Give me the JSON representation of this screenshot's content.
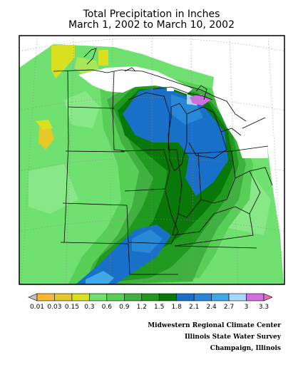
{
  "title": {
    "line1": "Total Precipitation in Inches",
    "line2": "March 1, 2002 to March 10, 2002"
  },
  "legend": {
    "labels": [
      "0.01",
      "0.03",
      "0.15",
      "0.3",
      "0.6",
      "0.9",
      "1.2",
      "1.5",
      "1.8",
      "2.1",
      "2.4",
      "2.7",
      "3",
      "3.3"
    ],
    "colors": [
      "#c0c0c0",
      "#f8b830",
      "#e8c828",
      "#d8e020",
      "#70e070",
      "#58d058",
      "#40b040",
      "#1f9a1f",
      "#087808",
      "#1870c8",
      "#2888d8",
      "#40a8e8",
      "#a8d8f8",
      "#d070e0",
      "#e070b0"
    ]
  },
  "credits": {
    "line1": "Midwestern Regional Climate Center",
    "line2": "Illinois State Water Survey",
    "line3": "Champaign, Illinois"
  }
}
